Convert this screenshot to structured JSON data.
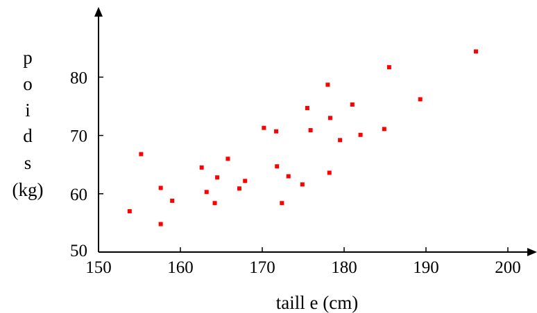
{
  "chart_data": {
    "type": "scatter",
    "title": "",
    "xlabel": "taill e (cm)",
    "ylabel_lines": [
      "p",
      "o",
      "i",
      "d",
      "s",
      "(kg)"
    ],
    "xlim": [
      150,
      202
    ],
    "ylim": [
      50,
      89
    ],
    "xticks": [
      150,
      160,
      170,
      180,
      190,
      200
    ],
    "yticks": [
      50,
      60,
      70,
      80
    ],
    "grid": false,
    "color": "#ff0000",
    "points": [
      {
        "x": 153.8,
        "y": 57.0
      },
      {
        "x": 155.2,
        "y": 66.8
      },
      {
        "x": 157.6,
        "y": 61.0
      },
      {
        "x": 157.6,
        "y": 54.8
      },
      {
        "x": 159.0,
        "y": 58.8
      },
      {
        "x": 162.6,
        "y": 64.5
      },
      {
        "x": 163.2,
        "y": 60.3
      },
      {
        "x": 164.2,
        "y": 58.4
      },
      {
        "x": 164.5,
        "y": 62.8
      },
      {
        "x": 165.8,
        "y": 66.0
      },
      {
        "x": 167.2,
        "y": 60.9
      },
      {
        "x": 167.9,
        "y": 62.2
      },
      {
        "x": 170.2,
        "y": 71.3
      },
      {
        "x": 171.7,
        "y": 70.7
      },
      {
        "x": 171.8,
        "y": 64.7
      },
      {
        "x": 172.4,
        "y": 58.4
      },
      {
        "x": 173.2,
        "y": 63.0
      },
      {
        "x": 174.9,
        "y": 61.6
      },
      {
        "x": 175.5,
        "y": 74.7
      },
      {
        "x": 175.9,
        "y": 70.9
      },
      {
        "x": 178.0,
        "y": 78.7
      },
      {
        "x": 178.2,
        "y": 63.6
      },
      {
        "x": 178.3,
        "y": 73.0
      },
      {
        "x": 179.5,
        "y": 69.2
      },
      {
        "x": 181.0,
        "y": 75.3
      },
      {
        "x": 182.0,
        "y": 70.1
      },
      {
        "x": 184.9,
        "y": 71.1
      },
      {
        "x": 185.5,
        "y": 81.7
      },
      {
        "x": 189.3,
        "y": 76.2
      },
      {
        "x": 196.1,
        "y": 84.4
      }
    ]
  }
}
